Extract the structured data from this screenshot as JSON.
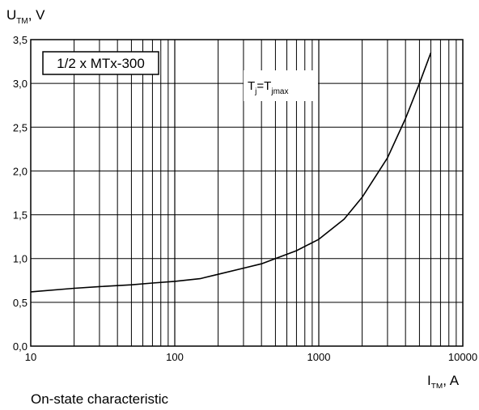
{
  "chart_data": {
    "type": "line",
    "title": "",
    "caption": "On-state characteristic",
    "ylabel": {
      "main": "U",
      "sub": "TM",
      "unit": ", V"
    },
    "xlabel": {
      "main": "I",
      "sub": "TM",
      "unit": ", A"
    },
    "x_scale": "log",
    "xlim": [
      10,
      10000
    ],
    "ylim": [
      0,
      3.5
    ],
    "grid": true,
    "x_tick_labels": [
      "10",
      "100",
      "1000",
      "10000"
    ],
    "y_tick_labels": [
      "0,0",
      "0,5",
      "1,0",
      "1,5",
      "2,0",
      "2,5",
      "3,0",
      "3,5"
    ],
    "annotations": {
      "device": "1/2 x MTx-300",
      "condition": {
        "t1": "T",
        "s1": "j",
        "eq": "=T",
        "s2": "jmax"
      }
    },
    "series": [
      {
        "x": [
          10,
          20,
          30,
          50,
          70,
          100,
          150,
          200,
          300,
          400,
          500,
          700,
          1000,
          1500,
          2000,
          3000,
          4000,
          5000,
          6000
        ],
        "y": [
          0.62,
          0.66,
          0.68,
          0.7,
          0.72,
          0.74,
          0.77,
          0.82,
          0.89,
          0.94,
          1.0,
          1.09,
          1.22,
          1.45,
          1.7,
          2.15,
          2.6,
          3.0,
          3.35
        ]
      }
    ]
  }
}
